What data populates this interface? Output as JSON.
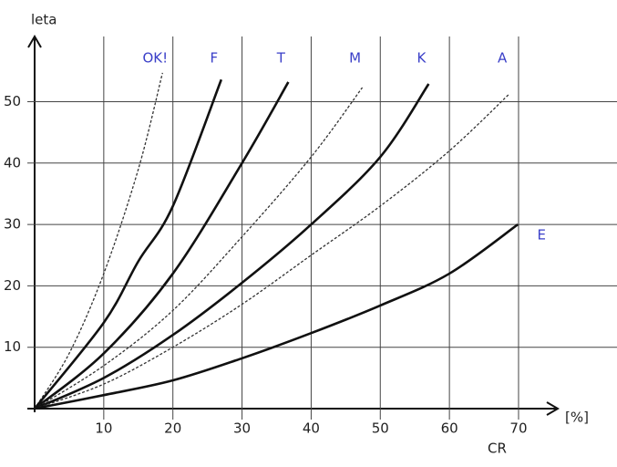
{
  "chart_data": {
    "type": "line",
    "xlabel": "CR",
    "xunit": "[%]",
    "ylabel": "leta",
    "xlim": [
      0,
      82
    ],
    "ylim": [
      0,
      63
    ],
    "xticks": [
      10,
      20,
      30,
      40,
      50,
      60,
      70
    ],
    "yticks": [
      10,
      20,
      30,
      40,
      50
    ],
    "grid": true,
    "label_color": "#3a3fc8",
    "series": [
      {
        "name": "OK!",
        "color": "#333",
        "dashed": true,
        "x": [
          0,
          5,
          10,
          15,
          18.5
        ],
        "values": [
          0,
          9,
          22,
          39,
          54.7
        ]
      },
      {
        "name": "F",
        "color": "#111",
        "dashed": false,
        "x": [
          0,
          10,
          15,
          20,
          27
        ],
        "values": [
          0,
          14,
          24,
          33,
          53.6
        ]
      },
      {
        "name": "T",
        "color": "#111",
        "dashed": false,
        "x": [
          0,
          10,
          20,
          30,
          36.7
        ],
        "values": [
          0,
          9,
          22,
          40,
          53.2
        ]
      },
      {
        "name": "M",
        "color": "#333",
        "dashed": true,
        "x": [
          0,
          10,
          20,
          30,
          40,
          47.4
        ],
        "values": [
          0,
          7,
          16,
          28,
          41,
          52.3
        ]
      },
      {
        "name": "K",
        "color": "#111",
        "dashed": false,
        "x": [
          0,
          10,
          20,
          30,
          40,
          50,
          57
        ],
        "values": [
          0,
          5,
          12,
          20.5,
          30,
          41,
          52.9
        ]
      },
      {
        "name": "A",
        "color": "#333",
        "dashed": true,
        "x": [
          0,
          10,
          20,
          30,
          40,
          50,
          60,
          68.7
        ],
        "values": [
          0,
          4,
          10,
          17,
          25,
          33,
          42,
          51.3
        ]
      },
      {
        "name": "E",
        "color": "#111",
        "dashed": false,
        "x": [
          0,
          10,
          20,
          30,
          40,
          50,
          60,
          69.9
        ],
        "values": [
          0,
          2.2,
          4.6,
          8.2,
          12.3,
          16.8,
          22,
          30
        ]
      }
    ]
  }
}
